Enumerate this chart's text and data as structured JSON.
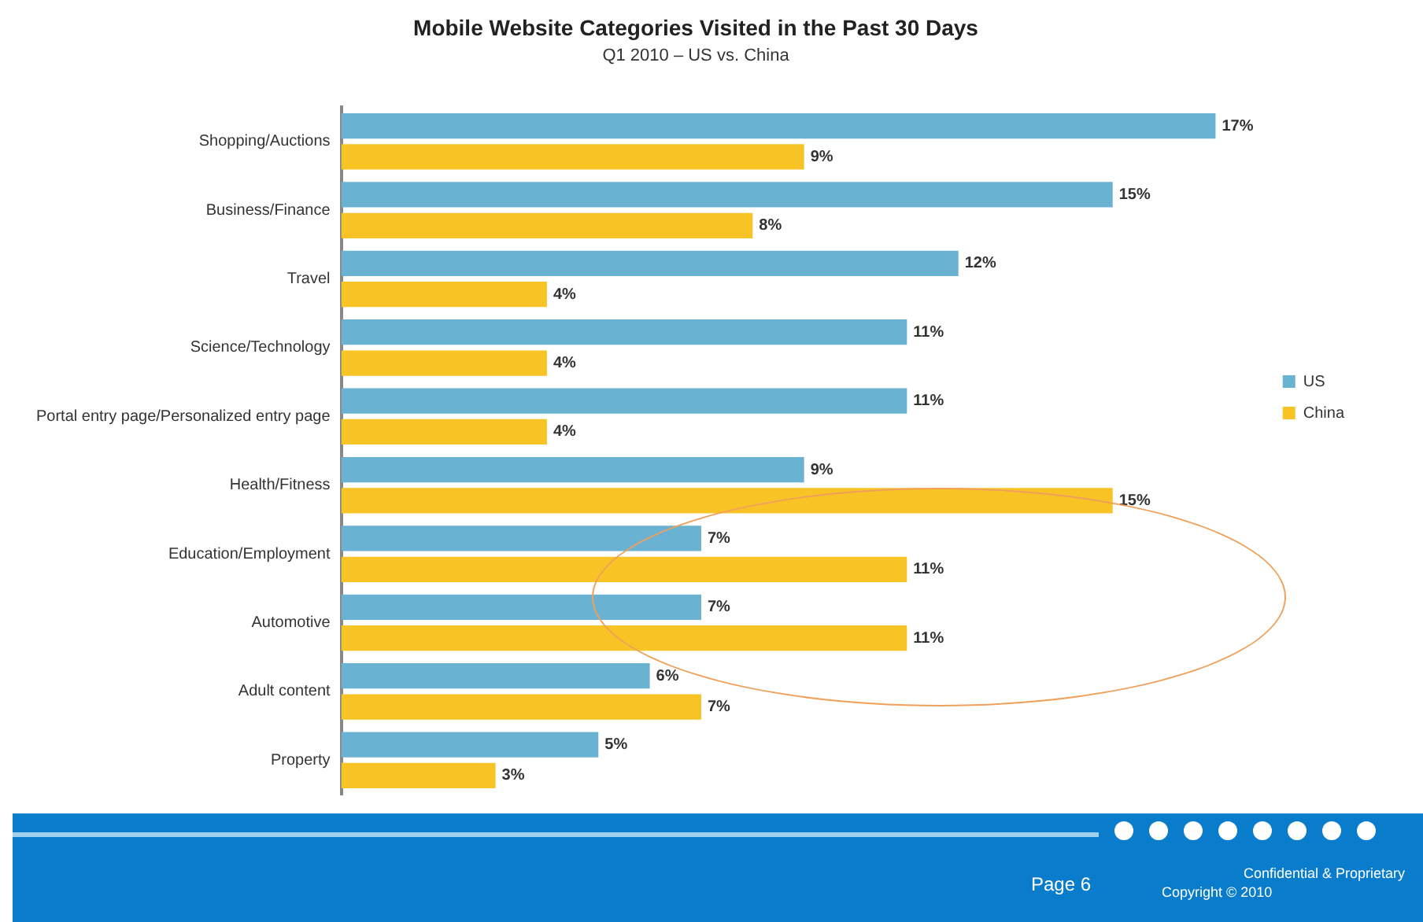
{
  "chart_data": {
    "type": "bar",
    "orientation": "horizontal",
    "title": "Mobile Website Categories Visited in the Past 30 Days",
    "subtitle": "Q1 2010 – US vs. China",
    "categories": [
      "Shopping/Auctions",
      "Business/Finance",
      "Travel",
      "Science/Technology",
      "Portal entry page/Personalized entry page",
      "Health/Fitness",
      "Education/Employment",
      "Automotive",
      "Adult content",
      "Property"
    ],
    "series": [
      {
        "name": "US",
        "color": "#6ab2d2",
        "values": [
          17,
          15,
          12,
          11,
          11,
          9,
          7,
          7,
          6,
          5
        ],
        "value_labels": [
          "17%",
          "15%",
          "12%",
          "11%",
          "11%",
          "9%",
          "7%",
          "7%",
          "6%",
          "5%"
        ]
      },
      {
        "name": "China",
        "color": "#f7c325",
        "values": [
          9,
          8,
          4,
          4,
          4,
          15,
          11,
          11,
          7,
          3
        ],
        "value_labels": [
          "9%",
          "8%",
          "4%",
          "4%",
          "4%",
          "15%",
          "11%",
          "11%",
          "7%",
          "3%"
        ]
      }
    ],
    "tick_labels": "y",
    "legend": "right",
    "annotations": [
      "Page 6",
      "Confidential & Proprietary",
      "Copyright © 2010"
    ]
  }
}
